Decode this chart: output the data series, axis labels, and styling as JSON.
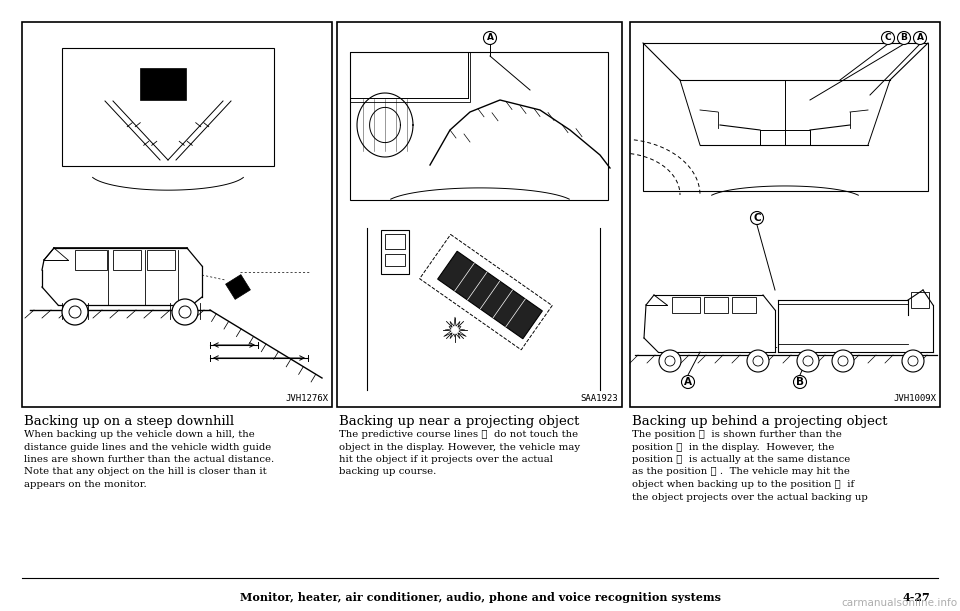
{
  "page_bg": "#ffffff",
  "border_color": "#000000",
  "panel1_label": "JVH1276X",
  "panel2_label": "SAA1923",
  "panel3_label": "JVH1009X",
  "title1": "Backing up on a steep downhill",
  "title2": "Backing up near a projecting object",
  "title3": "Backing up behind a projecting object",
  "body1": "When backing up the vehicle down a hill, the\ndistance guide lines and the vehicle width guide\nlines are shown further than the actual distance.\nNote that any object on the hill is closer than it\nappears on the monitor.",
  "body2": "The predictive course lines Ⓐ  do not touch the\nobject in the display. However, the vehicle may\nhit the object if it projects over the actual\nbacking up course.",
  "body3": "The position Ⓒ  is shown further than the\nposition Ⓑ  in the display.  However, the\nposition Ⓒ  is actually at the same distance\nas the position Ⓐ .  The vehicle may hit the\nobject when backing up to the position Ⓐ  if\nthe object projects over the actual backing up",
  "footer": "Monitor, heater, air conditioner, audio, phone and voice recognition systems",
  "page_num": "4-27",
  "watermark": "carmanualsonline.info",
  "p1": [
    22,
    22,
    310,
    385
  ],
  "p2": [
    337,
    22,
    285,
    385
  ],
  "p3": [
    630,
    22,
    310,
    385
  ]
}
